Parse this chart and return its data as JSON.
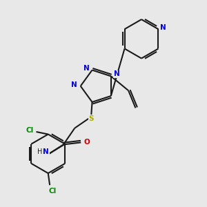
{
  "background_color": "#e8e8e8",
  "bond_color": "#1a1a1a",
  "nitrogen_color": "#0000dd",
  "oxygen_color": "#cc0000",
  "sulfur_color": "#aaaa00",
  "chlorine_color": "#008800",
  "fig_width": 3.0,
  "fig_height": 3.0,
  "dpi": 100,
  "xlim": [
    0,
    10
  ],
  "ylim": [
    0,
    10
  ]
}
